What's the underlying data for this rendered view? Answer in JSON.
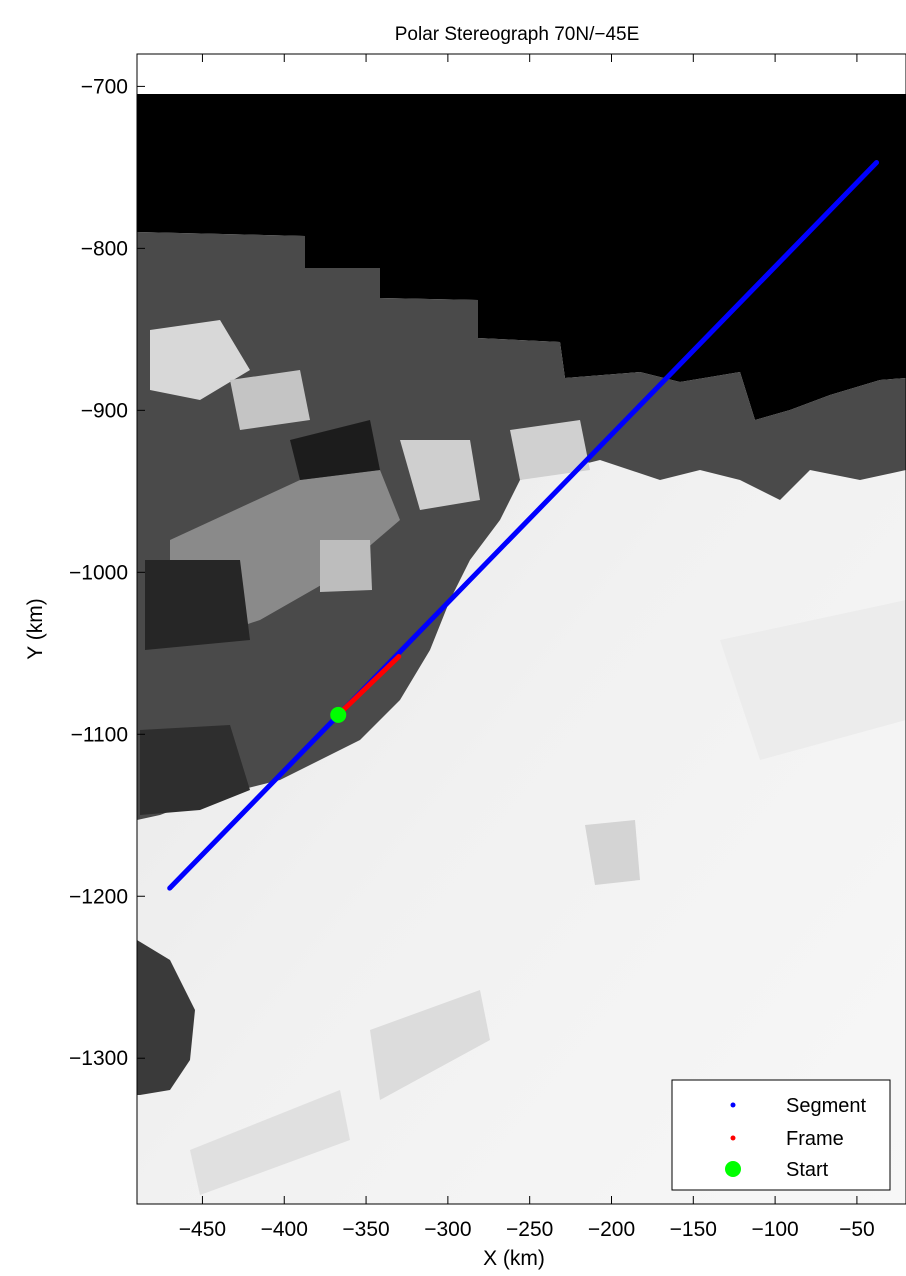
{
  "chart_data": {
    "type": "scatter",
    "title": "Polar Stereograph 70N/−45E",
    "xlabel": "X (km)",
    "ylabel": "Y (km)",
    "xlim": [
      -490,
      -20
    ],
    "ylim": [
      -1390,
      -680
    ],
    "xticks": [
      -450,
      -400,
      -350,
      -300,
      -250,
      -200,
      -150,
      -100,
      -50
    ],
    "yticks": [
      -700,
      -800,
      -900,
      -1000,
      -1100,
      -1200,
      -1300
    ],
    "xtick_labels": [
      "−450",
      "−400",
      "−350",
      "−300",
      "−250",
      "−200",
      "−150",
      "−100",
      "−50"
    ],
    "ytick_labels": [
      "−700",
      "−800",
      "−900",
      "−1000",
      "−1100",
      "−1200",
      "−1300"
    ],
    "grid": false,
    "background": "grayscale satellite mosaic of Greenland coast; no-data area black",
    "legend_position": "bottom-right",
    "series": [
      {
        "name": "Segment",
        "color": "#0000ff",
        "marker": "dot",
        "x": [
          -470,
          -38
        ],
        "y": [
          -1195,
          -747
        ]
      },
      {
        "name": "Frame",
        "color": "#ff0000",
        "marker": "dot",
        "x": [
          -367,
          -330
        ],
        "y": [
          -1088,
          -1052
        ]
      },
      {
        "name": "Start",
        "color": "#00ff00",
        "marker": "filled-circle",
        "x": [
          -367
        ],
        "y": [
          -1088
        ]
      }
    ]
  }
}
